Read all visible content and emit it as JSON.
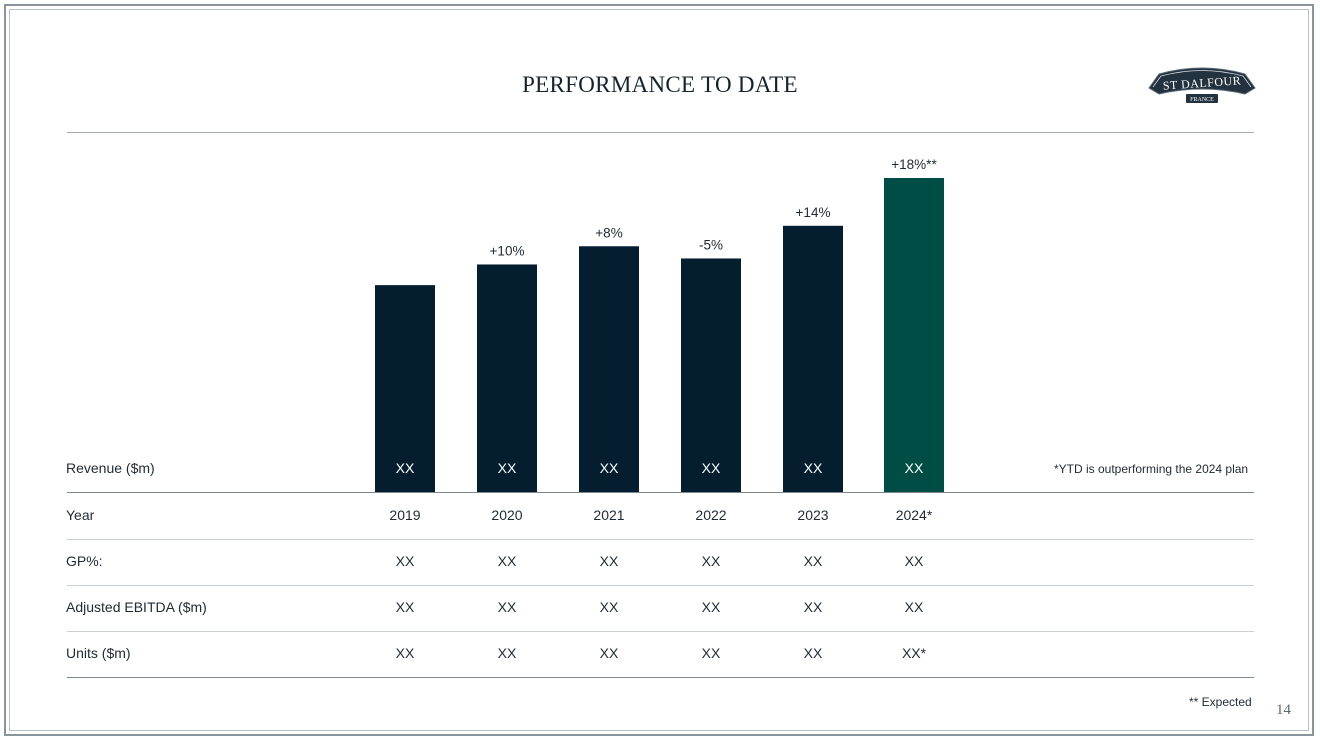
{
  "slide": {
    "title": "PERFORMANCE TO DATE",
    "page_number": "14",
    "logo": {
      "text_main": "ST DALFOUR",
      "text_sub": "FRANCE"
    },
    "note_ytd": "*YTD is outperforming the 2024 plan",
    "note_expected": "** Expected"
  },
  "colors": {
    "bar_actual": "#041e2f",
    "bar_expected": "#004d45",
    "title": "#14222d"
  },
  "chart_data": {
    "type": "bar",
    "title": "PERFORMANCE TO DATE",
    "categories": [
      "2019",
      "2020",
      "2021",
      "2022",
      "2023",
      "2024*"
    ],
    "values": [
      100,
      110,
      118.8,
      112.9,
      128.7,
      151.8
    ],
    "value_unit": "relative index, first year = 100 (bar heights unlabeled)",
    "growth_labels": [
      "",
      "+10%",
      "+8%",
      "-5%",
      "+14%",
      "+18%**"
    ],
    "bar_value_labels": [
      "XX",
      "XX",
      "XX",
      "XX",
      "XX",
      "XX"
    ],
    "highlight_index": 5,
    "ylim": [
      0,
      151.8
    ],
    "grid": false,
    "legend": "none"
  },
  "table": {
    "revenue_label": "Revenue ($m)",
    "rows": [
      {
        "label": "Year",
        "values": [
          "2019",
          "2020",
          "2021",
          "2022",
          "2023",
          "2024*"
        ]
      },
      {
        "label": "GP%:",
        "values": [
          "XX",
          "XX",
          "XX",
          "XX",
          "XX",
          "XX"
        ]
      },
      {
        "label": "Adjusted EBITDA ($m)",
        "values": [
          "XX",
          "XX",
          "XX",
          "XX",
          "XX",
          "XX"
        ]
      },
      {
        "label": "Units ($m)",
        "values": [
          "XX",
          "XX",
          "XX",
          "XX",
          "XX",
          "XX*"
        ]
      }
    ]
  }
}
